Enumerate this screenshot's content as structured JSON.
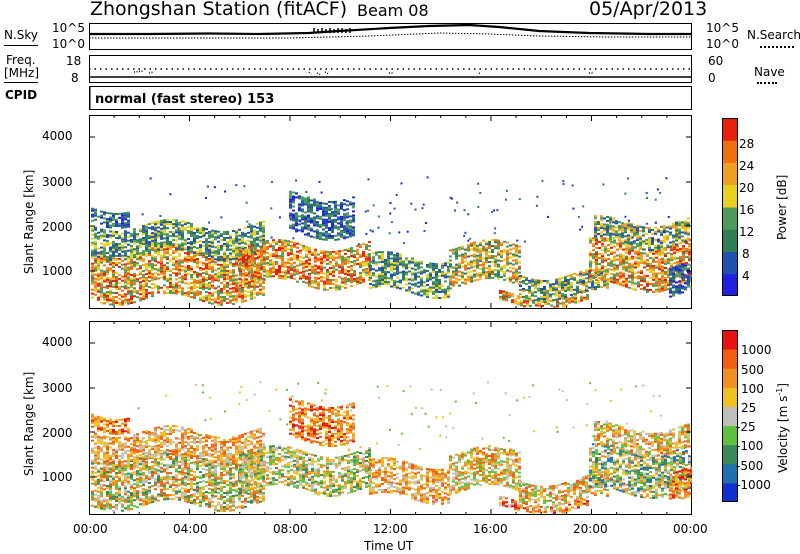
{
  "header": {
    "station": "Zhongshan Station (fitACF)",
    "beam": "Beam 08",
    "date": "05/Apr/2013"
  },
  "top_panel": {
    "left_label": "N.Sky",
    "right_label": "N.Search",
    "left_ticks": [
      "10^5",
      "10^0"
    ],
    "right_ticks": [
      "10^5",
      "10^0"
    ]
  },
  "freq_panel": {
    "left_label_1": "Freq.",
    "left_label_2": "[MHz]",
    "right_label": "Nave",
    "left_ticks": [
      "18",
      "8"
    ],
    "right_ticks": [
      "60",
      "0"
    ]
  },
  "cpid": {
    "label": "CPID",
    "text": "normal (fast stereo) 153"
  },
  "colors": {
    "power": [
      "#2020e0",
      "#2050b0",
      "#2e7d58",
      "#4e9a5a",
      "#e8d020",
      "#f0a020",
      "#f07010",
      "#e82010"
    ],
    "velocity": [
      "#e81010",
      "#f06010",
      "#f09020",
      "#f0c020",
      "#c0c0b8",
      "#60c040",
      "#3a8a58",
      "#2070b0",
      "#1030d0"
    ]
  },
  "chart_data": [
    {
      "type": "heatmap",
      "title": "Power",
      "ylabel": "Slant Range [km]",
      "ylim": [
        180,
        4500
      ],
      "y_ticks": [
        "1000",
        "2000",
        "3000",
        "4000"
      ],
      "x_ticks": [
        "00:00",
        "04:00",
        "08:00",
        "12:00",
        "16:00",
        "20:00",
        "00:00"
      ],
      "colorbar_label": "Power [dB]",
      "colorbar_ticks": [
        "4",
        "8",
        "12",
        "16",
        "20",
        "24",
        "28"
      ]
    },
    {
      "type": "heatmap",
      "title": "Velocity",
      "ylabel": "Slant Range [km]",
      "xlabel": "Time UT",
      "ylim": [
        180,
        4500
      ],
      "y_ticks": [
        "1000",
        "2000",
        "3000",
        "4000"
      ],
      "x_ticks": [
        "00:00",
        "04:00",
        "08:00",
        "12:00",
        "16:00",
        "20:00",
        "00:00"
      ],
      "colorbar_label": "Velocity [m s",
      "colorbar_label_sup": "-1",
      "colorbar_label_end": "]",
      "colorbar_ticks": [
        "1000",
        "500",
        "100",
        "25",
        "-25",
        "-100",
        "-500",
        "-1000"
      ]
    }
  ]
}
